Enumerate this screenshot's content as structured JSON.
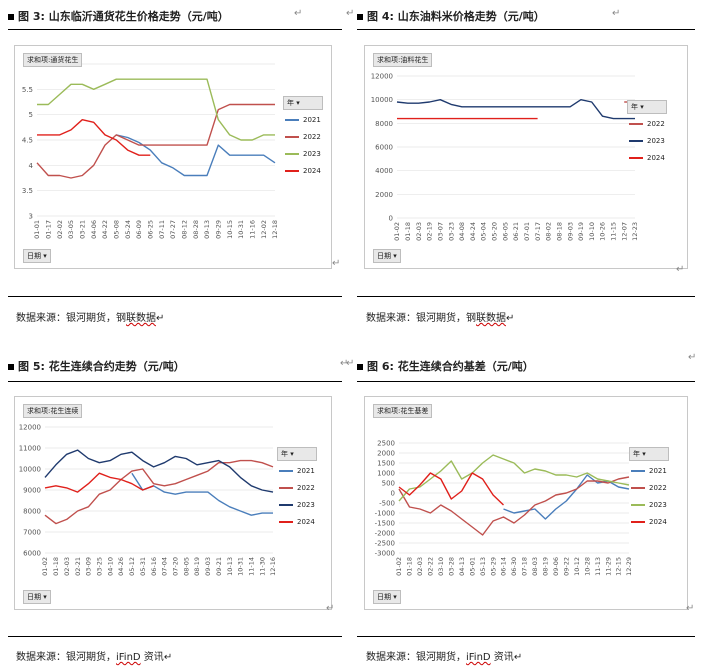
{
  "colors": {
    "2021": "#4a7ebb",
    "2022": "#c0504d",
    "2023": "#9bbb59",
    "2024": "#e0201b",
    "navy": "#1f3a6e"
  },
  "captions": {
    "fig3": "图 3:  山东临沂通货花生价格走势（元/吨）",
    "fig4": "图 4:  山东油料米价格走势（元/吨）",
    "fig5": "图 5:  花生连续合约走势（元/吨）",
    "fig6": "图 6:  花生连续合约基差（元/吨）"
  },
  "sources": {
    "fig3_prefix": "数据来源：银河期货，钢",
    "fig3_ul": "联数据",
    "fig4_prefix": "数据来源：银河期货，钢",
    "fig4_ul": "联数据",
    "fig5_prefix": "数据来源：银河期货，",
    "fig5_ul": "iFinD",
    "fig5_suffix": " 资讯",
    "fig6_prefix": "数据来源：银河期货，",
    "fig6_ul": "iFinD",
    "fig6_suffix": " 资讯"
  },
  "return_mark": "↵",
  "chart_data": [
    {
      "id": "fig3",
      "type": "line",
      "field_label": "求和项:通货花生",
      "legend_title": "年",
      "x_field": "日期",
      "categories": [
        "01-01",
        "01-17",
        "02-02",
        "03-05",
        "03-21",
        "04-06",
        "04-22",
        "05-08",
        "05-24",
        "06-09",
        "06-25",
        "07-11",
        "07-27",
        "08-12",
        "08-28",
        "09-13",
        "09-29",
        "10-15",
        "10-31",
        "11-16",
        "12-02",
        "12-18"
      ],
      "ylim": [
        3,
        6
      ],
      "yticks": [
        3,
        3.5,
        4,
        4.5,
        5,
        5.5,
        6
      ],
      "series": [
        {
          "name": "2021",
          "values": [
            null,
            null,
            null,
            null,
            null,
            null,
            null,
            4.6,
            4.55,
            4.45,
            4.3,
            4.05,
            3.95,
            3.8,
            3.8,
            3.8,
            4.4,
            4.2,
            4.2,
            4.2,
            4.2,
            4.05
          ]
        },
        {
          "name": "2022",
          "values": [
            4.05,
            3.8,
            3.8,
            3.75,
            3.8,
            4.0,
            4.4,
            4.6,
            4.5,
            4.4,
            4.4,
            4.4,
            4.4,
            4.4,
            4.4,
            4.4,
            5.1,
            5.2,
            5.2,
            5.2,
            5.2,
            5.2
          ]
        },
        {
          "name": "2023",
          "values": [
            5.2,
            5.2,
            5.4,
            5.6,
            5.6,
            5.5,
            5.6,
            5.7,
            5.7,
            5.7,
            5.7,
            5.7,
            5.7,
            5.7,
            5.7,
            5.7,
            4.9,
            4.6,
            4.5,
            4.5,
            4.6,
            4.6
          ]
        },
        {
          "name": "2024",
          "values": [
            4.6,
            4.6,
            4.6,
            4.7,
            4.9,
            4.85,
            4.6,
            4.5,
            4.3,
            4.2,
            4.2,
            null,
            null,
            null,
            null,
            null,
            null,
            null,
            null,
            null,
            null,
            null
          ]
        }
      ]
    },
    {
      "id": "fig4",
      "type": "line",
      "field_label": "求和项:油料花生",
      "legend_title": "年",
      "x_field": "日期",
      "categories": [
        "01-02",
        "01-18",
        "02-03",
        "02-19",
        "03-07",
        "03-23",
        "04-08",
        "04-24",
        "05-04",
        "05-20",
        "06-05",
        "06-21",
        "07-01",
        "07-17",
        "08-02",
        "08-18",
        "09-03",
        "09-19",
        "10-10",
        "10-26",
        "11-15",
        "12-07",
        "12-23"
      ],
      "ylim": [
        0,
        12000
      ],
      "yticks": [
        0,
        2000,
        4000,
        6000,
        8000,
        10000,
        12000
      ],
      "series": [
        {
          "name": "2022",
          "values": [
            null,
            null,
            null,
            null,
            null,
            null,
            null,
            null,
            null,
            null,
            null,
            null,
            null,
            null,
            null,
            null,
            null,
            null,
            null,
            null,
            null,
            9800,
            9800
          ]
        },
        {
          "name": "2023",
          "values": [
            9800,
            9700,
            9700,
            9800,
            10000,
            9600,
            9400,
            9400,
            9400,
            9400,
            9400,
            9400,
            9400,
            9400,
            9400,
            9400,
            9400,
            10000,
            9800,
            8600,
            8400,
            8400,
            8400
          ]
        },
        {
          "name": "2024",
          "values": [
            8400,
            8400,
            8400,
            8400,
            8400,
            8400,
            8400,
            8400,
            8400,
            8400,
            8400,
            8400,
            8400,
            8400,
            null,
            null,
            null,
            null,
            null,
            null,
            null,
            null,
            null
          ]
        }
      ]
    },
    {
      "id": "fig5",
      "type": "line",
      "field_label": "求和项:花生连续",
      "legend_title": "年",
      "x_field": "日期",
      "categories": [
        "01-02",
        "01-18",
        "02-03",
        "02-21",
        "03-09",
        "03-25",
        "04-10",
        "04-26",
        "05-12",
        "05-31",
        "06-16",
        "07-04",
        "07-20",
        "08-05",
        "08-19",
        "09-03",
        "09-21",
        "10-13",
        "10-31",
        "11-14",
        "11-30",
        "12-16"
      ],
      "ylim": [
        6000,
        12000
      ],
      "yticks": [
        6000,
        7000,
        8000,
        9000,
        10000,
        11000,
        12000
      ],
      "series": [
        {
          "name": "2021",
          "values": [
            null,
            null,
            null,
            null,
            null,
            null,
            null,
            null,
            9800,
            9000,
            9200,
            8900,
            8800,
            8900,
            8900,
            8900,
            8500,
            8200,
            8000,
            7800,
            7900,
            7900
          ]
        },
        {
          "name": "2022",
          "values": [
            7800,
            7400,
            7600,
            8000,
            8200,
            8800,
            9000,
            9500,
            9900,
            10000,
            9300,
            9200,
            9300,
            9500,
            9700,
            9900,
            10300,
            10300,
            10400,
            10400,
            10300,
            10100
          ]
        },
        {
          "name": "2023",
          "values": [
            9600,
            10200,
            10700,
            10900,
            10500,
            10300,
            10400,
            10700,
            10800,
            10400,
            10100,
            10300,
            10600,
            10500,
            10200,
            10300,
            10400,
            10100,
            9600,
            9200,
            9000,
            8900
          ]
        },
        {
          "name": "2024",
          "values": [
            9100,
            9200,
            9100,
            8900,
            9300,
            9800,
            9600,
            9500,
            9300,
            9000,
            9200,
            null,
            null,
            null,
            null,
            null,
            null,
            null,
            null,
            null,
            null,
            null
          ]
        }
      ]
    },
    {
      "id": "fig6",
      "type": "line",
      "field_label": "求和项:花生基差",
      "legend_title": "年",
      "x_field": "日期",
      "categories": [
        "01-02",
        "01-18",
        "02-03",
        "02-22",
        "03-10",
        "03-28",
        "04-13",
        "05-01",
        "05-13",
        "05-29",
        "06-14",
        "06-30",
        "07-18",
        "08-03",
        "08-19",
        "09-06",
        "09-22",
        "10-12",
        "10-28",
        "11-13",
        "11-29",
        "12-15",
        "12-29"
      ],
      "ylim": [
        -3000,
        2500
      ],
      "yticks": [
        -3000,
        -2500,
        -2000,
        -1500,
        -1000,
        -500,
        0,
        500,
        1000,
        1500,
        2000,
        2500
      ],
      "series": [
        {
          "name": "2021",
          "values": [
            null,
            null,
            null,
            null,
            null,
            null,
            null,
            null,
            null,
            null,
            -800,
            -1000,
            -900,
            -800,
            -1300,
            -800,
            -400,
            200,
            900,
            500,
            600,
            300,
            200
          ]
        },
        {
          "name": "2022",
          "values": [
            200,
            -700,
            -800,
            -1000,
            -600,
            -900,
            -1300,
            -1700,
            -2100,
            -1400,
            -1200,
            -1500,
            -1100,
            -600,
            -400,
            -100,
            0,
            200,
            600,
            600,
            500,
            700,
            800
          ]
        },
        {
          "name": "2023",
          "values": [
            -400,
            200,
            300,
            700,
            1100,
            1600,
            700,
            1000,
            1500,
            1900,
            1700,
            1500,
            1000,
            1200,
            1100,
            900,
            900,
            800,
            1000,
            700,
            600,
            500,
            400
          ]
        },
        {
          "name": "2024",
          "values": [
            300,
            -100,
            400,
            1000,
            700,
            -300,
            100,
            1000,
            700,
            -100,
            -600,
            null,
            null,
            null,
            null,
            null,
            null,
            null,
            null,
            null,
            null,
            null,
            null
          ]
        }
      ]
    }
  ]
}
